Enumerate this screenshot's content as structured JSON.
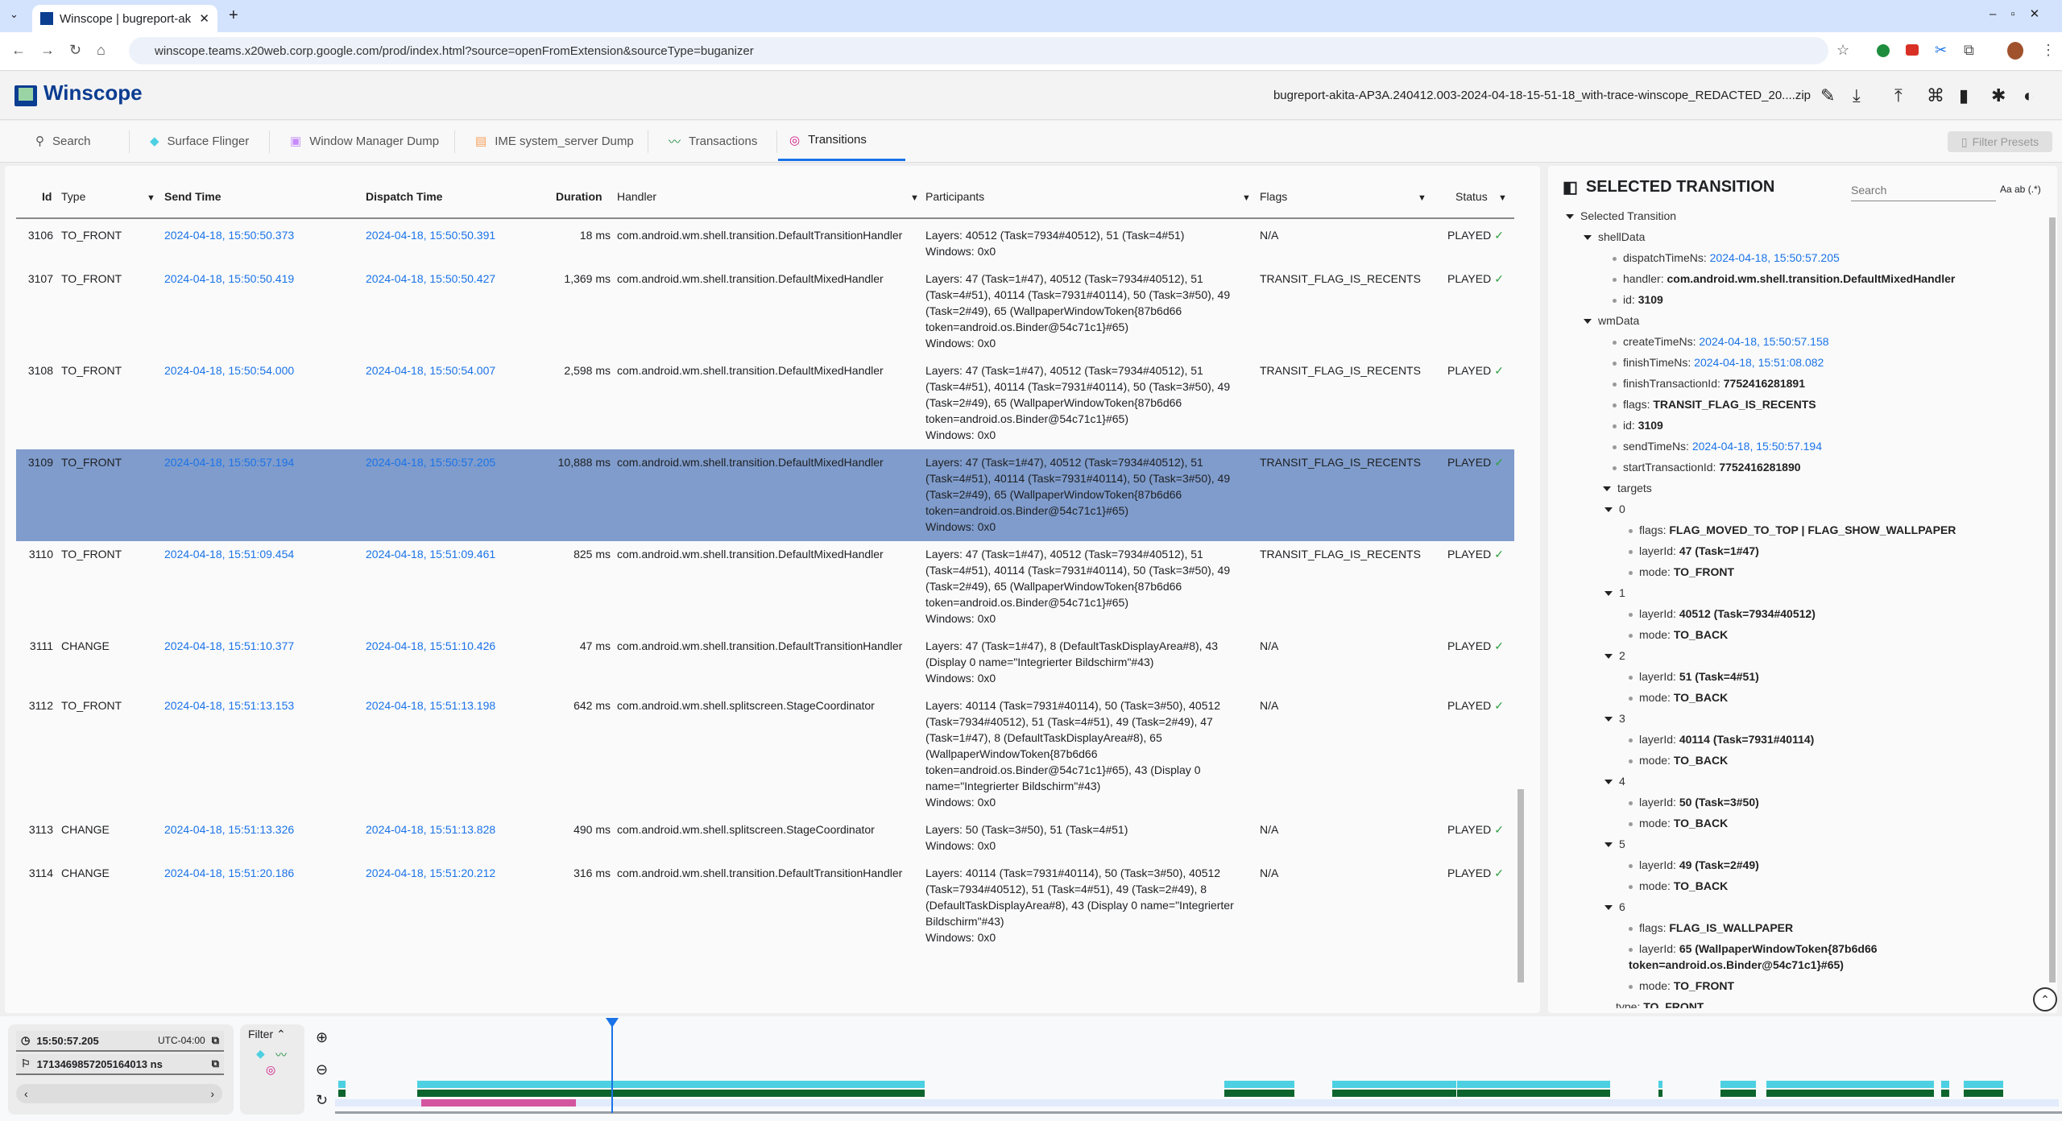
{
  "browser": {
    "tab_title": "Winscope | bugreport-ak",
    "url": "winscope.teams.x20web.corp.google.com/prod/index.html?source=openFromExtension&sourceType=buganizer"
  },
  "app": {
    "title": "Winscope",
    "filename": "bugreport-akita-AP3A.240412.003-2024-04-18-15-51-18_with-trace-winscope_REDACTED_20....zip"
  },
  "tabs": [
    {
      "label": "Search",
      "icon": "search-icon"
    },
    {
      "label": "Surface Flinger",
      "icon": "layers-icon",
      "color": "#4dd0e1"
    },
    {
      "label": "Window Manager Dump",
      "icon": "window-icon",
      "color": "#c58af9"
    },
    {
      "label": "IME system_server Dump",
      "icon": "keyboard-icon",
      "color": "#f6a05a"
    },
    {
      "label": "Transactions",
      "icon": "timeline-icon",
      "color": "#1e8e3e"
    },
    {
      "label": "Transitions",
      "icon": "transition-icon",
      "color": "#d01884",
      "active": true
    }
  ],
  "filter_presets": "Filter Presets",
  "table": {
    "headers": {
      "id": "Id",
      "type": "Type",
      "send_time": "Send Time",
      "dispatch_time": "Dispatch Time",
      "duration": "Duration",
      "handler": "Handler",
      "participants": "Participants",
      "flags": "Flags",
      "status": "Status"
    },
    "rows": [
      {
        "id": "3106",
        "type": "TO_FRONT",
        "send": "2024-04-18, 15:50:50.373",
        "dispatch": "2024-04-18, 15:50:50.391",
        "duration": "18 ms",
        "handler": "com.android.wm.shell.transition.DefaultTransitionHandler",
        "layers": "Layers: 40512 (Task=7934#40512), 51 (Task=4#51)",
        "windows": "Windows: 0x0",
        "flags": "N/A",
        "status": "PLAYED"
      },
      {
        "id": "3107",
        "type": "TO_FRONT",
        "send": "2024-04-18, 15:50:50.419",
        "dispatch": "2024-04-18, 15:50:50.427",
        "duration": "1,369 ms",
        "handler": "com.android.wm.shell.transition.DefaultMixedHandler",
        "layers": "Layers: 47 (Task=1#47), 40512 (Task=7934#40512), 51 (Task=4#51), 40114 (Task=7931#40114), 50 (Task=3#50), 49 (Task=2#49), 65 (WallpaperWindowToken{87b6d66 token=android.os.Binder@54c71c1}#65)",
        "windows": "Windows: 0x0",
        "flags": "TRANSIT_FLAG_IS_RECENTS",
        "status": "PLAYED"
      },
      {
        "id": "3108",
        "type": "TO_FRONT",
        "send": "2024-04-18, 15:50:54.000",
        "dispatch": "2024-04-18, 15:50:54.007",
        "duration": "2,598 ms",
        "handler": "com.android.wm.shell.transition.DefaultMixedHandler",
        "layers": "Layers: 47 (Task=1#47), 40512 (Task=7934#40512), 51 (Task=4#51), 40114 (Task=7931#40114), 50 (Task=3#50), 49 (Task=2#49), 65 (WallpaperWindowToken{87b6d66 token=android.os.Binder@54c71c1}#65)",
        "windows": "Windows: 0x0",
        "flags": "TRANSIT_FLAG_IS_RECENTS",
        "status": "PLAYED"
      },
      {
        "id": "3109",
        "type": "TO_FRONT",
        "send": "2024-04-18, 15:50:57.194",
        "dispatch": "2024-04-18, 15:50:57.205",
        "duration": "10,888 ms",
        "handler": "com.android.wm.shell.transition.DefaultMixedHandler",
        "layers": "Layers: 47 (Task=1#47), 40512 (Task=7934#40512), 51 (Task=4#51), 40114 (Task=7931#40114), 50 (Task=3#50), 49 (Task=2#49), 65 (WallpaperWindowToken{87b6d66 token=android.os.Binder@54c71c1}#65)",
        "windows": "Windows: 0x0",
        "flags": "TRANSIT_FLAG_IS_RECENTS",
        "status": "PLAYED",
        "selected": true
      },
      {
        "id": "3110",
        "type": "TO_FRONT",
        "send": "2024-04-18, 15:51:09.454",
        "dispatch": "2024-04-18, 15:51:09.461",
        "duration": "825 ms",
        "handler": "com.android.wm.shell.transition.DefaultMixedHandler",
        "layers": "Layers: 47 (Task=1#47), 40512 (Task=7934#40512), 51 (Task=4#51), 40114 (Task=7931#40114), 50 (Task=3#50), 49 (Task=2#49), 65 (WallpaperWindowToken{87b6d66 token=android.os.Binder@54c71c1}#65)",
        "windows": "Windows: 0x0",
        "flags": "TRANSIT_FLAG_IS_RECENTS",
        "status": "PLAYED"
      },
      {
        "id": "3111",
        "type": "CHANGE",
        "send": "2024-04-18, 15:51:10.377",
        "dispatch": "2024-04-18, 15:51:10.426",
        "duration": "47 ms",
        "handler": "com.android.wm.shell.transition.DefaultTransitionHandler",
        "layers": "Layers: 47 (Task=1#47), 8 (DefaultTaskDisplayArea#8), 43 (Display 0 name=\"Integrierter Bildschirm\"#43)",
        "windows": "Windows: 0x0",
        "flags": "N/A",
        "status": "PLAYED"
      },
      {
        "id": "3112",
        "type": "TO_FRONT",
        "send": "2024-04-18, 15:51:13.153",
        "dispatch": "2024-04-18, 15:51:13.198",
        "duration": "642 ms",
        "handler": "com.android.wm.shell.splitscreen.StageCoordinator",
        "layers": "Layers: 40114 (Task=7931#40114), 50 (Task=3#50), 40512 (Task=7934#40512), 51 (Task=4#51), 49 (Task=2#49), 47 (Task=1#47), 8 (DefaultTaskDisplayArea#8), 65 (WallpaperWindowToken{87b6d66 token=android.os.Binder@54c71c1}#65), 43 (Display 0 name=\"Integrierter Bildschirm\"#43)",
        "windows": "Windows: 0x0",
        "flags": "N/A",
        "status": "PLAYED"
      },
      {
        "id": "3113",
        "type": "CHANGE",
        "send": "2024-04-18, 15:51:13.326",
        "dispatch": "2024-04-18, 15:51:13.828",
        "duration": "490 ms",
        "handler": "com.android.wm.shell.splitscreen.StageCoordinator",
        "layers": "Layers: 50 (Task=3#50), 51 (Task=4#51)",
        "windows": "Windows: 0x0",
        "flags": "N/A",
        "status": "PLAYED"
      },
      {
        "id": "3114",
        "type": "CHANGE",
        "send": "2024-04-18, 15:51:20.186",
        "dispatch": "2024-04-18, 15:51:20.212",
        "duration": "316 ms",
        "handler": "com.android.wm.shell.transition.DefaultTransitionHandler",
        "layers": "Layers: 40114 (Task=7931#40114), 50 (Task=3#50), 40512 (Task=7934#40512), 51 (Task=4#51), 49 (Task=2#49), 8 (DefaultTaskDisplayArea#8), 43 (Display 0 name=\"Integrierter Bildschirm\"#43)",
        "windows": "Windows: 0x0",
        "flags": "N/A",
        "status": "PLAYED"
      }
    ]
  },
  "properties": {
    "title": "SELECTED TRANSITION",
    "search_placeholder": "Search",
    "options": "Aa  ab  (.*)",
    "tree": [
      {
        "d": 0,
        "c": 1,
        "k": "Selected Transition"
      },
      {
        "d": 1,
        "c": 1,
        "k": "shellData"
      },
      {
        "d": 2,
        "k": "dispatchTimeNs: ",
        "v": "2024-04-18, 15:50:57.205",
        "l": 1
      },
      {
        "d": 2,
        "k": "handler: ",
        "v": "com.android.wm.shell.transition.DefaultMixedHandler"
      },
      {
        "d": 2,
        "k": "id: ",
        "v": "3109"
      },
      {
        "d": 1,
        "c": 1,
        "k": "wmData"
      },
      {
        "d": 2,
        "k": "createTimeNs: ",
        "v": "2024-04-18, 15:50:57.158",
        "l": 1
      },
      {
        "d": 2,
        "k": "finishTimeNs: ",
        "v": "2024-04-18, 15:51:08.082",
        "l": 1
      },
      {
        "d": 2,
        "k": "finishTransactionId: ",
        "v": "7752416281891"
      },
      {
        "d": 2,
        "k": "flags: ",
        "v": "TRANSIT_FLAG_IS_RECENTS"
      },
      {
        "d": 2,
        "k": "id: ",
        "v": "3109"
      },
      {
        "d": 2,
        "k": "sendTimeNs: ",
        "v": "2024-04-18, 15:50:57.194",
        "l": 1
      },
      {
        "d": 2,
        "k": "startTransactionId: ",
        "v": "7752416281890"
      },
      {
        "d": 2,
        "c": 1,
        "k": "targets"
      },
      {
        "d": 3,
        "c": 1,
        "k": "0"
      },
      {
        "d": 4,
        "k": "flags: ",
        "v": "FLAG_MOVED_TO_TOP | FLAG_SHOW_WALLPAPER"
      },
      {
        "d": 4,
        "k": "layerId: ",
        "v": "47 (Task=1#47)"
      },
      {
        "d": 4,
        "k": "mode: ",
        "v": "TO_FRONT"
      },
      {
        "d": 3,
        "c": 1,
        "k": "1"
      },
      {
        "d": 4,
        "k": "layerId: ",
        "v": "40512 (Task=7934#40512)"
      },
      {
        "d": 4,
        "k": "mode: ",
        "v": "TO_BACK"
      },
      {
        "d": 3,
        "c": 1,
        "k": "2"
      },
      {
        "d": 4,
        "k": "layerId: ",
        "v": "51 (Task=4#51)"
      },
      {
        "d": 4,
        "k": "mode: ",
        "v": "TO_BACK"
      },
      {
        "d": 3,
        "c": 1,
        "k": "3"
      },
      {
        "d": 4,
        "k": "layerId: ",
        "v": "40114 (Task=7931#40114)"
      },
      {
        "d": 4,
        "k": "mode: ",
        "v": "TO_BACK"
      },
      {
        "d": 3,
        "c": 1,
        "k": "4"
      },
      {
        "d": 4,
        "k": "layerId: ",
        "v": "50 (Task=3#50)"
      },
      {
        "d": 4,
        "k": "mode: ",
        "v": "TO_BACK"
      },
      {
        "d": 3,
        "c": 1,
        "k": "5"
      },
      {
        "d": 4,
        "k": "layerId: ",
        "v": "49 (Task=2#49)"
      },
      {
        "d": 4,
        "k": "mode: ",
        "v": "TO_BACK"
      },
      {
        "d": 3,
        "c": 1,
        "k": "6"
      },
      {
        "d": 4,
        "k": "flags: ",
        "v": "FLAG_IS_WALLPAPER"
      },
      {
        "d": 4,
        "k": "layerId: ",
        "v": "65 (WallpaperWindowToken{87b6d66 token=android.os.Binder@54c71c1}#65)",
        "wrap": 1
      },
      {
        "d": 4,
        "k": "mode: ",
        "v": "TO_FRONT"
      },
      {
        "d": 2,
        "k": "type: ",
        "v": "TO_FRONT",
        "cut": 1
      }
    ]
  },
  "timeline": {
    "time": "15:50:57.205",
    "timezone": "UTC-04:00",
    "ns": "1713469857205164013 ns",
    "filter_label": "Filter",
    "colors": {
      "surface_flinger": "#4dd0e1",
      "transactions": "#0d652d",
      "transitions": "#d4559f",
      "cursor": "#1a73e8"
    }
  }
}
